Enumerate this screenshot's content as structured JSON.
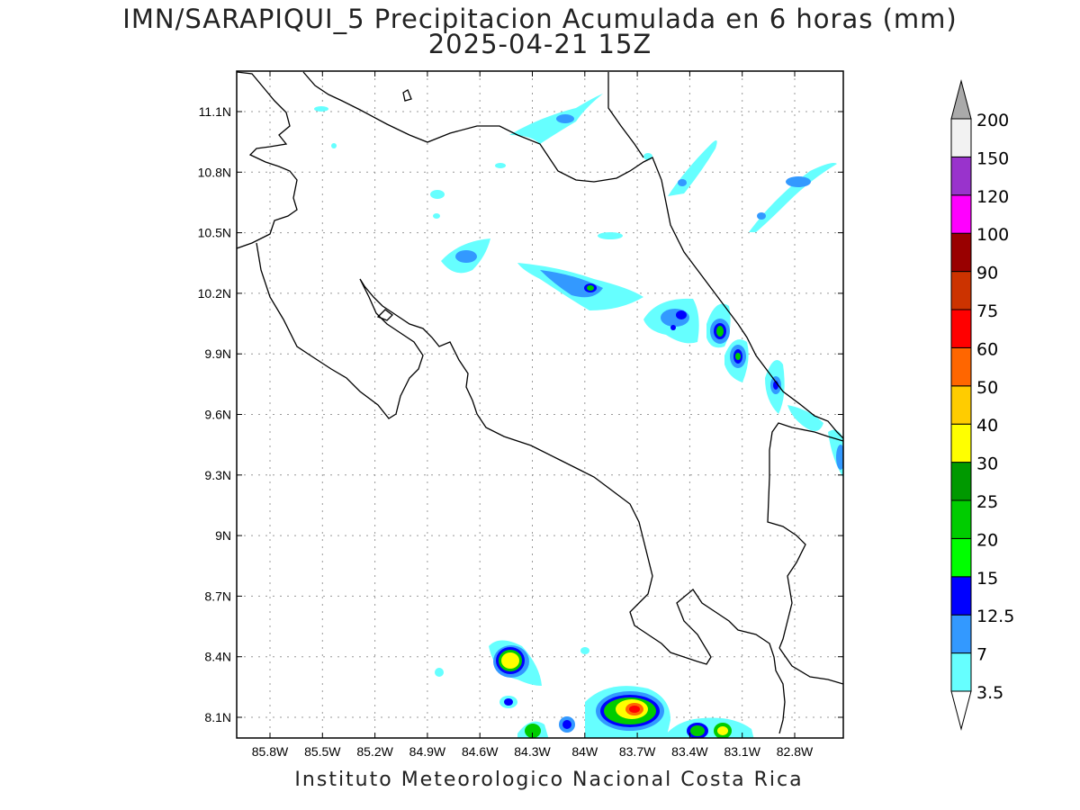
{
  "title_line1": "IMN/SARAPIQUI_5 Precipitacion Acumulada en 6 horas (mm)",
  "title_line2": "2025-04-21 15Z",
  "footer": "Instituto Meteorologico Nacional Costa Rica",
  "axes": {
    "lon_labels": [
      "85.8W",
      "85.5W",
      "85.2W",
      "84.9W",
      "84.6W",
      "84.3W",
      "84W",
      "83.7W",
      "83.4W",
      "83.1W",
      "82.8W"
    ],
    "lat_labels": [
      "11.1N",
      "10.8N",
      "10.5N",
      "10.2N",
      "9.9N",
      "9.6N",
      "9.3N",
      "9N",
      "8.7N",
      "8.4N",
      "8.1N"
    ]
  },
  "colorbar": {
    "levels": [
      "3.5",
      "7",
      "12.5",
      "15",
      "20",
      "25",
      "30",
      "40",
      "50",
      "60",
      "75",
      "90",
      "100",
      "120",
      "150",
      "200"
    ],
    "colors": [
      "#66ffff",
      "#3399ff",
      "#0000ff",
      "#00ff00",
      "#00cc00",
      "#009900",
      "#ffff00",
      "#ffcc00",
      "#ff6600",
      "#ff0000",
      "#cc3300",
      "#990000",
      "#ff00ff",
      "#9933cc",
      "#f2f2f2",
      "#aaaaaa"
    ],
    "low_arrow_color": "#ffffff",
    "high_arrow_color": "#aaaaaa"
  }
}
